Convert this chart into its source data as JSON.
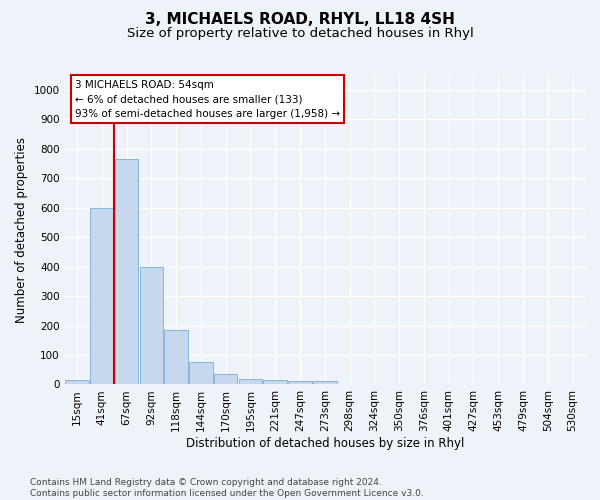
{
  "title": "3, MICHAELS ROAD, RHYL, LL18 4SH",
  "subtitle": "Size of property relative to detached houses in Rhyl",
  "xlabel": "Distribution of detached houses by size in Rhyl",
  "ylabel": "Number of detached properties",
  "categories": [
    "15sqm",
    "41sqm",
    "67sqm",
    "92sqm",
    "118sqm",
    "144sqm",
    "170sqm",
    "195sqm",
    "221sqm",
    "247sqm",
    "273sqm",
    "298sqm",
    "324sqm",
    "350sqm",
    "376sqm",
    "401sqm",
    "427sqm",
    "453sqm",
    "479sqm",
    "504sqm",
    "530sqm"
  ],
  "values": [
    15,
    600,
    765,
    400,
    185,
    75,
    35,
    20,
    15,
    12,
    12,
    0,
    0,
    0,
    0,
    0,
    0,
    0,
    0,
    0,
    0
  ],
  "bar_color": "#c5d8ee",
  "bar_edge_color": "#7bafd4",
  "annotation_text": "3 MICHAELS ROAD: 54sqm\n← 6% of detached houses are smaller (133)\n93% of semi-detached houses are larger (1,958) →",
  "annotation_box_color": "#ffffff",
  "annotation_box_edge": "#cc0000",
  "property_line_color": "#cc0000",
  "property_line_xindex": 1,
  "ylim": [
    0,
    1050
  ],
  "yticks": [
    0,
    100,
    200,
    300,
    400,
    500,
    600,
    700,
    800,
    900,
    1000
  ],
  "background_color": "#eef2f9",
  "grid_color": "#ffffff",
  "footnote": "Contains HM Land Registry data © Crown copyright and database right 2024.\nContains public sector information licensed under the Open Government Licence v3.0.",
  "title_fontsize": 11,
  "subtitle_fontsize": 9.5,
  "label_fontsize": 8.5,
  "tick_fontsize": 7.5,
  "footnote_fontsize": 6.5
}
